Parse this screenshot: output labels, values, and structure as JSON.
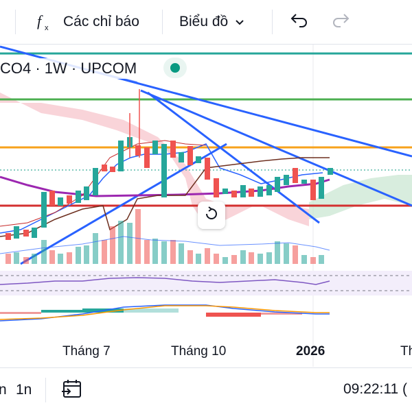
{
  "toolbar": {
    "indicators_label": "Các chỉ báo",
    "chart_type_label": "Biểu đồ"
  },
  "legend": {
    "symbol_text": "CO4 · 1W · UPCOM",
    "status_color": "#089981"
  },
  "time_axis": {
    "labels": [
      "Tháng 7",
      "Tháng 10",
      "2026",
      "Th"
    ]
  },
  "bottom_bar": {
    "interval_left": "n",
    "interval_selected": "1n",
    "clock": "09:22:11 (",
    "calendar_icon": "goto-date-icon"
  },
  "colors": {
    "up": "#26a69a",
    "down": "#ef5350",
    "trendline": "#2962ff",
    "orange_level": "#f7a21b",
    "green_level": "#4caf50",
    "red_level": "#e53935",
    "teal_level": "#26a69a"
  }
}
